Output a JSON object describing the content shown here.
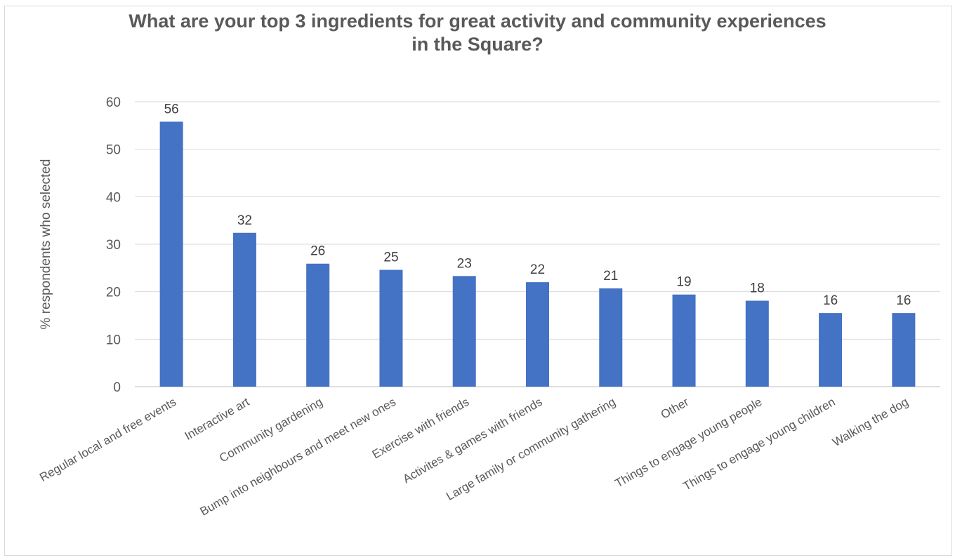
{
  "chart_data": {
    "type": "bar",
    "title_lines": [
      "What are your top 3 ingredients for great activity and community experiences",
      "in the Square?"
    ],
    "xlabel": "",
    "ylabel": "% respondents who selected",
    "ylim": [
      0,
      60
    ],
    "yticks": [
      0,
      10,
      20,
      30,
      40,
      50,
      60
    ],
    "grid": true,
    "legend": "none",
    "bar_color": "#4472c4",
    "categories": [
      "Regular local and free events",
      "Interactive art",
      "Community gardening",
      "Bump into neighbours and meet new ones",
      "Exercise with friends",
      "Activites & games with friends",
      "Large family or community gathering",
      "Other",
      "Things to engage young people",
      "Things to engage young children",
      "Walking the dog"
    ],
    "values": [
      55.8,
      32.4,
      25.9,
      24.6,
      23.3,
      22.0,
      20.7,
      19.4,
      18.1,
      15.5,
      15.5
    ],
    "data_labels": [
      "56",
      "32",
      "26",
      "25",
      "23",
      "22",
      "21",
      "19",
      "18",
      "16",
      "16"
    ]
  }
}
